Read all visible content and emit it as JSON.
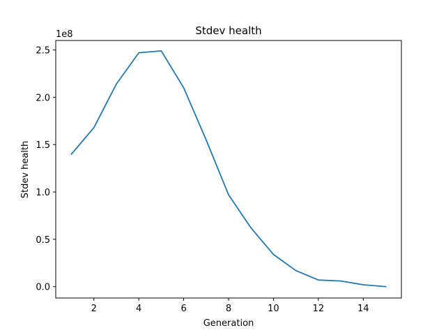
{
  "chart_data": {
    "type": "line",
    "title": "Stdev health",
    "xlabel": "Generation",
    "ylabel": "Stdev health",
    "y_offset_label": "1e8",
    "grid": false,
    "xlim": [
      0.3,
      15.7
    ],
    "ylim": [
      -0.12,
      2.6
    ],
    "x_ticks": [
      2,
      4,
      6,
      8,
      10,
      12,
      14
    ],
    "x_tick_labels": [
      "2",
      "4",
      "6",
      "8",
      "10",
      "12",
      "14"
    ],
    "y_ticks": [
      0.0,
      0.5,
      1.0,
      1.5,
      2.0,
      2.5
    ],
    "y_tick_labels": [
      "0.0",
      "0.5",
      "1.0",
      "1.5",
      "2.0",
      "2.5"
    ],
    "series": [
      {
        "color": "#1f77b4",
        "x": [
          1,
          2,
          3,
          4,
          5,
          6,
          7,
          8,
          9,
          10,
          11,
          12,
          13,
          14,
          15
        ],
        "y": [
          1.4,
          1.68,
          2.14,
          2.47,
          2.49,
          2.1,
          1.55,
          0.97,
          0.62,
          0.34,
          0.17,
          0.07,
          0.06,
          0.02,
          0.0
        ]
      }
    ]
  }
}
